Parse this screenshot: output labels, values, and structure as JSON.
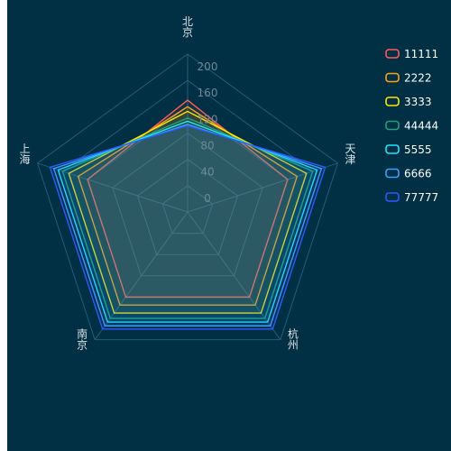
{
  "chart_data": {
    "type": "radar",
    "indicators": [
      "北京",
      "天津",
      "杭州",
      "南京",
      "上海"
    ],
    "max": 240,
    "ticks": [
      0,
      40,
      80,
      120,
      160,
      200
    ],
    "series": [
      {
        "name": "11111",
        "color": "#ff5c5c",
        "values": [
          170,
          160,
          160,
          160,
          160
        ]
      },
      {
        "name": "2222",
        "color": "#ff9f1a",
        "values": [
          160,
          175,
          175,
          175,
          175
        ]
      },
      {
        "name": "3333",
        "color": "#ffe600",
        "values": [
          153,
          190,
          190,
          190,
          190
        ]
      },
      {
        "name": "44444",
        "color": "#1fa37a",
        "values": [
          143,
          200,
          200,
          200,
          200
        ]
      },
      {
        "name": "5555",
        "color": "#1de8ff",
        "values": [
          138,
          207,
          207,
          207,
          207
        ]
      },
      {
        "name": "6666",
        "color": "#3fa0ff",
        "values": [
          133,
          214,
          214,
          214,
          214
        ]
      },
      {
        "name": "77777",
        "color": "#2a5cff",
        "values": [
          131,
          220,
          220,
          220,
          220
        ]
      }
    ],
    "background": "#012f43",
    "grid_color": "#1e5d7a",
    "legend_position": "right"
  }
}
